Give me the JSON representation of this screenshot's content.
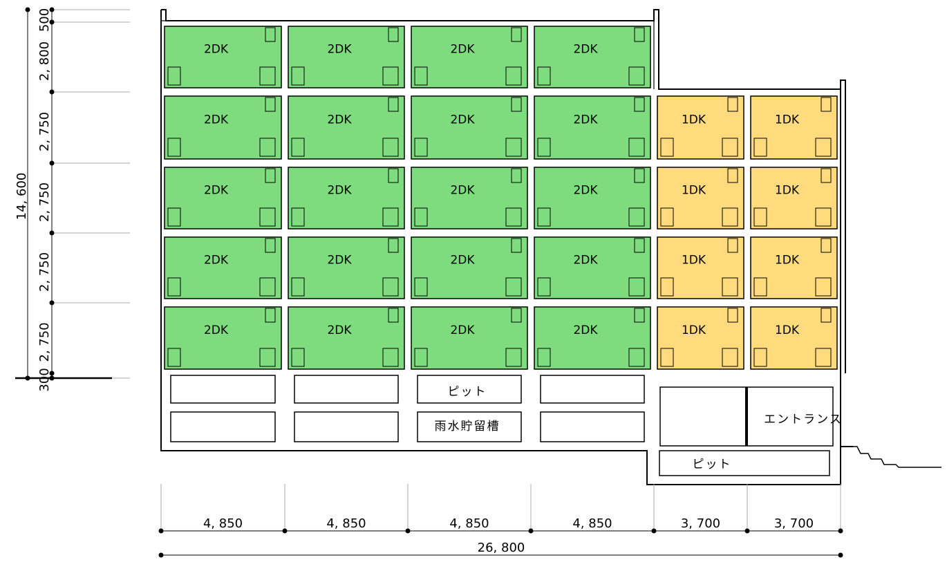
{
  "diagram": {
    "colors": {
      "unit_2dk": "#7edc7e",
      "unit_1dk": "#ffdb7e",
      "line": "#000000",
      "wall_fill": "#ffffff",
      "floor_line": "#aaaaaa"
    },
    "unit_types": {
      "large": "2DK",
      "small": "1DK"
    },
    "rooms": {
      "pit_label": "ピット",
      "rain_tank_label": "雨水貯留槽",
      "entrance_label": "エントランス",
      "entrance_pit_label": "ピット"
    },
    "vertical_dims": {
      "total": "14, 600",
      "segments": [
        "500",
        "2, 800",
        "2, 750",
        "2, 750",
        "2, 750",
        "2, 750",
        "300"
      ]
    },
    "horizontal_dims": {
      "total": "26, 800",
      "segments": [
        "4, 850",
        "4, 850",
        "4, 850",
        "4, 850",
        "3, 700",
        "3, 700"
      ]
    }
  }
}
